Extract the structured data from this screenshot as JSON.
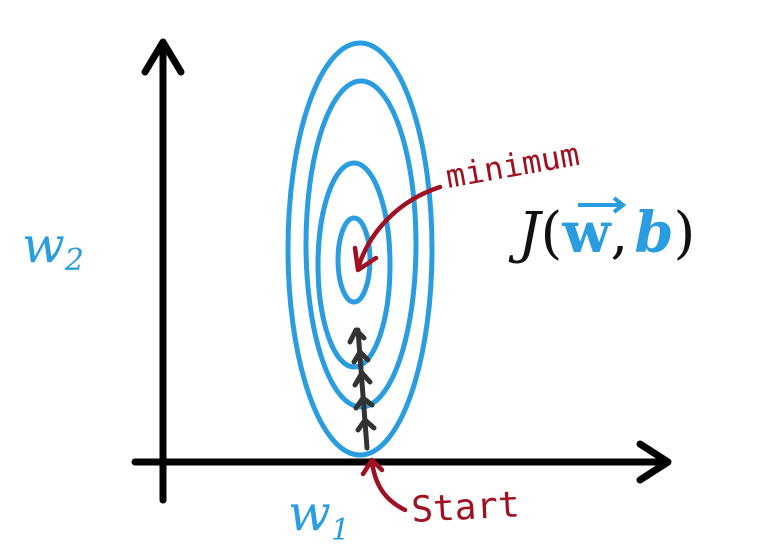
{
  "labels": {
    "y_axis": "w",
    "y_axis_sub": "2",
    "x_axis": "w",
    "x_axis_sub": "1",
    "function_J": "J",
    "function_open": "(",
    "function_w": "w",
    "function_comma": ",",
    "function_b": "b",
    "function_close": ")",
    "minimum": "minimum",
    "start": "Start"
  },
  "colors": {
    "contour": "#2a9de0",
    "axis": "#000000",
    "annotation": "#a01020",
    "steps": "#333333"
  },
  "contour_count": 4,
  "gradient_steps": 5
}
